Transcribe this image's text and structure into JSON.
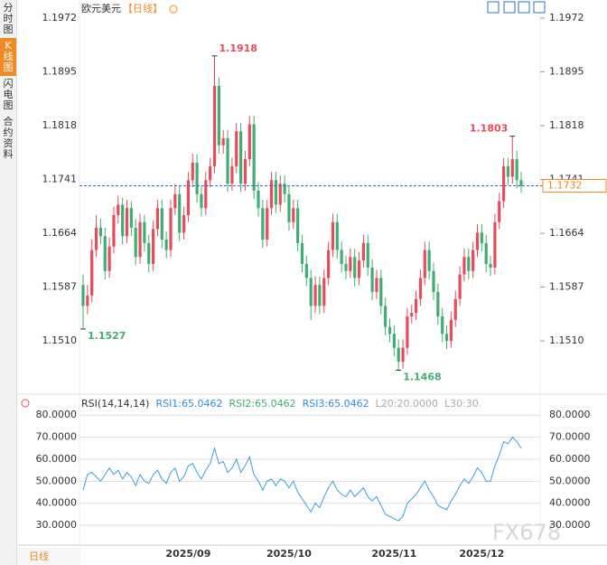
{
  "sidebar": {
    "tabs": [
      "分时图",
      "K线图",
      "闪电图",
      "合约资料"
    ],
    "active": 1
  },
  "footer": {
    "period": "日线",
    "watermark": "FX678"
  },
  "chart_data": {
    "type": "candlestick",
    "title": "欧元美元",
    "period": "【日线】",
    "up_color": "#e94b5a",
    "down_color": "#3fae72",
    "ylim": [
      1.1435,
      1.1998
    ],
    "yticks": [
      1.1972,
      1.1895,
      1.1818,
      1.1741,
      1.1664,
      1.1587,
      {
        "value": 1.151,
        "label": "1.1510"
      }
    ],
    "markers": [
      [
        30,
        1
      ],
      [
        98,
        1
      ],
      [
        0,
        2
      ],
      [
        72,
        2
      ]
    ],
    "last_price_color": "#2f6fd1",
    "categories": [
      null,
      null,
      null,
      null,
      null,
      null,
      null,
      null,
      null,
      null,
      null,
      null,
      null,
      null,
      null,
      null,
      null,
      null,
      null,
      null,
      null,
      null,
      null,
      null,
      "2025/09",
      null,
      null,
      null,
      null,
      null,
      null,
      null,
      null,
      null,
      null,
      null,
      null,
      null,
      null,
      null,
      null,
      null,
      null,
      null,
      null,
      null,
      null,
      "2025/10",
      null,
      null,
      null,
      null,
      null,
      null,
      null,
      null,
      null,
      null,
      null,
      null,
      null,
      null,
      null,
      null,
      null,
      null,
      null,
      null,
      null,
      null,
      null,
      "2025/11",
      null,
      null,
      null,
      null,
      null,
      null,
      null,
      null,
      null,
      null,
      null,
      null,
      null,
      null,
      null,
      null,
      null,
      null,
      null,
      "2025/12",
      null,
      null,
      null,
      null,
      null,
      null,
      null,
      null,
      null
    ],
    "candles": [
      [
        1.159,
        1.1605,
        1.1527,
        1.156
      ],
      [
        1.156,
        1.159,
        1.1548,
        1.1575
      ],
      [
        1.1575,
        1.1655,
        1.1565,
        1.164
      ],
      [
        1.164,
        1.169,
        1.163,
        1.1672
      ],
      [
        1.1672,
        1.1685,
        1.1648,
        1.166
      ],
      [
        1.166,
        1.1672,
        1.1598,
        1.161
      ],
      [
        1.161,
        1.1658,
        1.16,
        1.1645
      ],
      [
        1.1645,
        1.1702,
        1.1635,
        1.169
      ],
      [
        1.169,
        1.1718,
        1.1678,
        1.1705
      ],
      [
        1.1705,
        1.1715,
        1.1648,
        1.166
      ],
      [
        1.166,
        1.1712,
        1.165,
        1.17
      ],
      [
        1.17,
        1.171,
        1.166,
        1.1672
      ],
      [
        1.1672,
        1.1684,
        1.1618,
        1.163
      ],
      [
        1.163,
        1.1692,
        1.162,
        1.168
      ],
      [
        1.168,
        1.169,
        1.1638,
        1.165
      ],
      [
        1.165,
        1.1662,
        1.1608,
        1.162
      ],
      [
        1.162,
        1.1682,
        1.161,
        1.167
      ],
      [
        1.167,
        1.1712,
        1.166,
        1.17
      ],
      [
        1.17,
        1.1712,
        1.1643,
        1.1655
      ],
      [
        1.1655,
        1.1667,
        1.1628,
        1.164
      ],
      [
        1.164,
        1.1712,
        1.163,
        1.17
      ],
      [
        1.17,
        1.1735,
        1.169,
        1.172
      ],
      [
        1.172,
        1.1732,
        1.1653,
        1.1665
      ],
      [
        1.1665,
        1.1702,
        1.1655,
        1.169
      ],
      [
        1.169,
        1.1752,
        1.168,
        1.174
      ],
      [
        1.174,
        1.1778,
        1.173,
        1.1765
      ],
      [
        1.1765,
        1.1777,
        1.1708,
        1.172
      ],
      [
        1.172,
        1.1732,
        1.1688,
        1.17
      ],
      [
        1.17,
        1.1752,
        1.169,
        1.174
      ],
      [
        1.174,
        1.1772,
        1.173,
        1.176
      ],
      [
        1.176,
        1.1918,
        1.175,
        1.1875
      ],
      [
        1.1875,
        1.1887,
        1.1778,
        1.179
      ],
      [
        1.179,
        1.1812,
        1.1778,
        1.18
      ],
      [
        1.18,
        1.1812,
        1.1723,
        1.1735
      ],
      [
        1.1735,
        1.1772,
        1.1725,
        1.176
      ],
      [
        1.176,
        1.1822,
        1.175,
        1.181
      ],
      [
        1.181,
        1.1822,
        1.1723,
        1.1735
      ],
      [
        1.1735,
        1.1782,
        1.1725,
        1.177
      ],
      [
        1.177,
        1.1832,
        1.176,
        1.182
      ],
      [
        1.182,
        1.1832,
        1.1713,
        1.1725
      ],
      [
        1.1725,
        1.1737,
        1.1688,
        1.17
      ],
      [
        1.17,
        1.1712,
        1.1643,
        1.1655
      ],
      [
        1.1655,
        1.1712,
        1.1645,
        1.17
      ],
      [
        1.17,
        1.1752,
        1.169,
        1.174
      ],
      [
        1.174,
        1.1752,
        1.1693,
        1.1705
      ],
      [
        1.1705,
        1.1747,
        1.1695,
        1.1735
      ],
      [
        1.1735,
        1.1747,
        1.1708,
        1.172
      ],
      [
        1.172,
        1.1732,
        1.1668,
        1.168
      ],
      [
        1.168,
        1.1712,
        1.167,
        1.17
      ],
      [
        1.17,
        1.1712,
        1.1638,
        1.165
      ],
      [
        1.165,
        1.1662,
        1.1608,
        1.162
      ],
      [
        1.162,
        1.1632,
        1.1588,
        1.16
      ],
      [
        1.16,
        1.1612,
        1.154,
        1.156
      ],
      [
        1.156,
        1.1602,
        1.155,
        1.159
      ],
      [
        1.159,
        1.1602,
        1.1548,
        1.156
      ],
      [
        1.156,
        1.1612,
        1.155,
        1.16
      ],
      [
        1.16,
        1.1652,
        1.159,
        1.164
      ],
      [
        1.164,
        1.1692,
        1.163,
        1.168
      ],
      [
        1.168,
        1.1692,
        1.1628,
        1.164
      ],
      [
        1.164,
        1.1652,
        1.1608,
        1.162
      ],
      [
        1.162,
        1.1632,
        1.1598,
        1.161
      ],
      [
        1.161,
        1.1642,
        1.16,
        1.163
      ],
      [
        1.163,
        1.1642,
        1.1588,
        1.16
      ],
      [
        1.16,
        1.1637,
        1.159,
        1.1625
      ],
      [
        1.1625,
        1.1662,
        1.1615,
        1.165
      ],
      [
        1.165,
        1.1662,
        1.1603,
        1.1615
      ],
      [
        1.1615,
        1.1627,
        1.1568,
        1.158
      ],
      [
        1.158,
        1.1612,
        1.157,
        1.16
      ],
      [
        1.16,
        1.1612,
        1.1548,
        1.156
      ],
      [
        1.156,
        1.1572,
        1.1518,
        1.153
      ],
      [
        1.153,
        1.1542,
        1.1508,
        1.152
      ],
      [
        1.152,
        1.1532,
        1.1488,
        1.15
      ],
      [
        1.15,
        1.1512,
        1.1468,
        1.148
      ],
      [
        1.148,
        1.1512,
        1.147,
        1.15
      ],
      [
        1.15,
        1.1557,
        1.149,
        1.1545
      ],
      [
        1.1545,
        1.1562,
        1.1535,
        1.155
      ],
      [
        1.155,
        1.1582,
        1.154,
        1.157
      ],
      [
        1.157,
        1.1612,
        1.156,
        1.16
      ],
      [
        1.16,
        1.1652,
        1.159,
        1.164
      ],
      [
        1.164,
        1.1652,
        1.1598,
        1.161
      ],
      [
        1.161,
        1.1622,
        1.1568,
        1.158
      ],
      [
        1.158,
        1.1592,
        1.1533,
        1.1545
      ],
      [
        1.1545,
        1.1557,
        1.1508,
        1.152
      ],
      [
        1.152,
        1.1532,
        1.1498,
        1.151
      ],
      [
        1.151,
        1.1552,
        1.15,
        1.154
      ],
      [
        1.154,
        1.1582,
        1.153,
        1.157
      ],
      [
        1.157,
        1.1617,
        1.156,
        1.1605
      ],
      [
        1.1605,
        1.1642,
        1.1595,
        1.163
      ],
      [
        1.163,
        1.1642,
        1.1598,
        1.161
      ],
      [
        1.161,
        1.1652,
        1.16,
        1.164
      ],
      [
        1.164,
        1.1677,
        1.163,
        1.1665
      ],
      [
        1.1665,
        1.1677,
        1.1638,
        1.165
      ],
      [
        1.165,
        1.1662,
        1.1608,
        1.162
      ],
      [
        1.162,
        1.1632,
        1.1603,
        1.1615
      ],
      [
        1.1615,
        1.1692,
        1.1605,
        1.168
      ],
      [
        1.168,
        1.1722,
        1.167,
        1.171
      ],
      [
        1.171,
        1.1772,
        1.17,
        1.176
      ],
      [
        1.176,
        1.1772,
        1.1733,
        1.1745
      ],
      [
        1.1745,
        1.1803,
        1.1735,
        1.177
      ],
      [
        1.177,
        1.1782,
        1.1728,
        1.174
      ],
      [
        1.174,
        1.1752,
        1.1722,
        1.1732
      ]
    ],
    "rsi": {
      "type": "line",
      "color": "#3aa0d8",
      "legend": [
        {
          "text": "RSI(14,14,14)",
          "color": "#333333"
        },
        {
          "text": "RSI1:65.0462",
          "color": "#2f8fd8"
        },
        {
          "text": "RSI2:65.0462",
          "color": "#3fae72"
        },
        {
          "text": "RSI3:65.0462",
          "color": "#2f8fd8"
        },
        {
          "text": "L20:20.0000",
          "color": "#aaaaaa"
        },
        {
          "text": "L30:30.",
          "color": "#aaaaaa"
        }
      ],
      "ylim": [
        21,
        85
      ],
      "yticks": [
        {
          "value": 80,
          "label": "80.0000"
        },
        {
          "value": 70,
          "label": "70.0000"
        },
        {
          "value": 60,
          "label": "60.0000"
        },
        {
          "value": 50,
          "label": "50.0000"
        },
        {
          "value": 40,
          "label": "40.0000"
        },
        {
          "value": 30,
          "label": "30.0000"
        }
      ],
      "values": [
        46,
        53,
        54,
        52,
        50,
        53,
        56,
        53,
        55,
        51,
        54,
        52,
        48,
        53,
        50,
        49,
        53,
        55,
        51,
        49,
        54,
        56,
        50,
        52,
        57,
        58,
        54,
        51,
        55,
        58,
        65,
        58,
        59,
        54,
        56,
        60,
        54,
        57,
        61,
        53,
        50,
        46,
        50,
        51,
        48,
        51,
        50,
        47,
        50,
        45,
        42,
        39,
        36,
        40,
        38,
        43,
        47,
        50,
        46,
        44,
        43,
        46,
        43,
        45,
        47,
        43,
        41,
        43,
        39,
        35,
        34,
        33,
        32,
        34,
        40,
        42,
        44,
        47,
        50,
        46,
        43,
        39,
        38,
        37,
        41,
        44,
        48,
        51,
        49,
        52,
        56,
        54,
        50,
        50,
        57,
        62,
        68,
        67,
        70,
        68,
        65
      ]
    }
  }
}
